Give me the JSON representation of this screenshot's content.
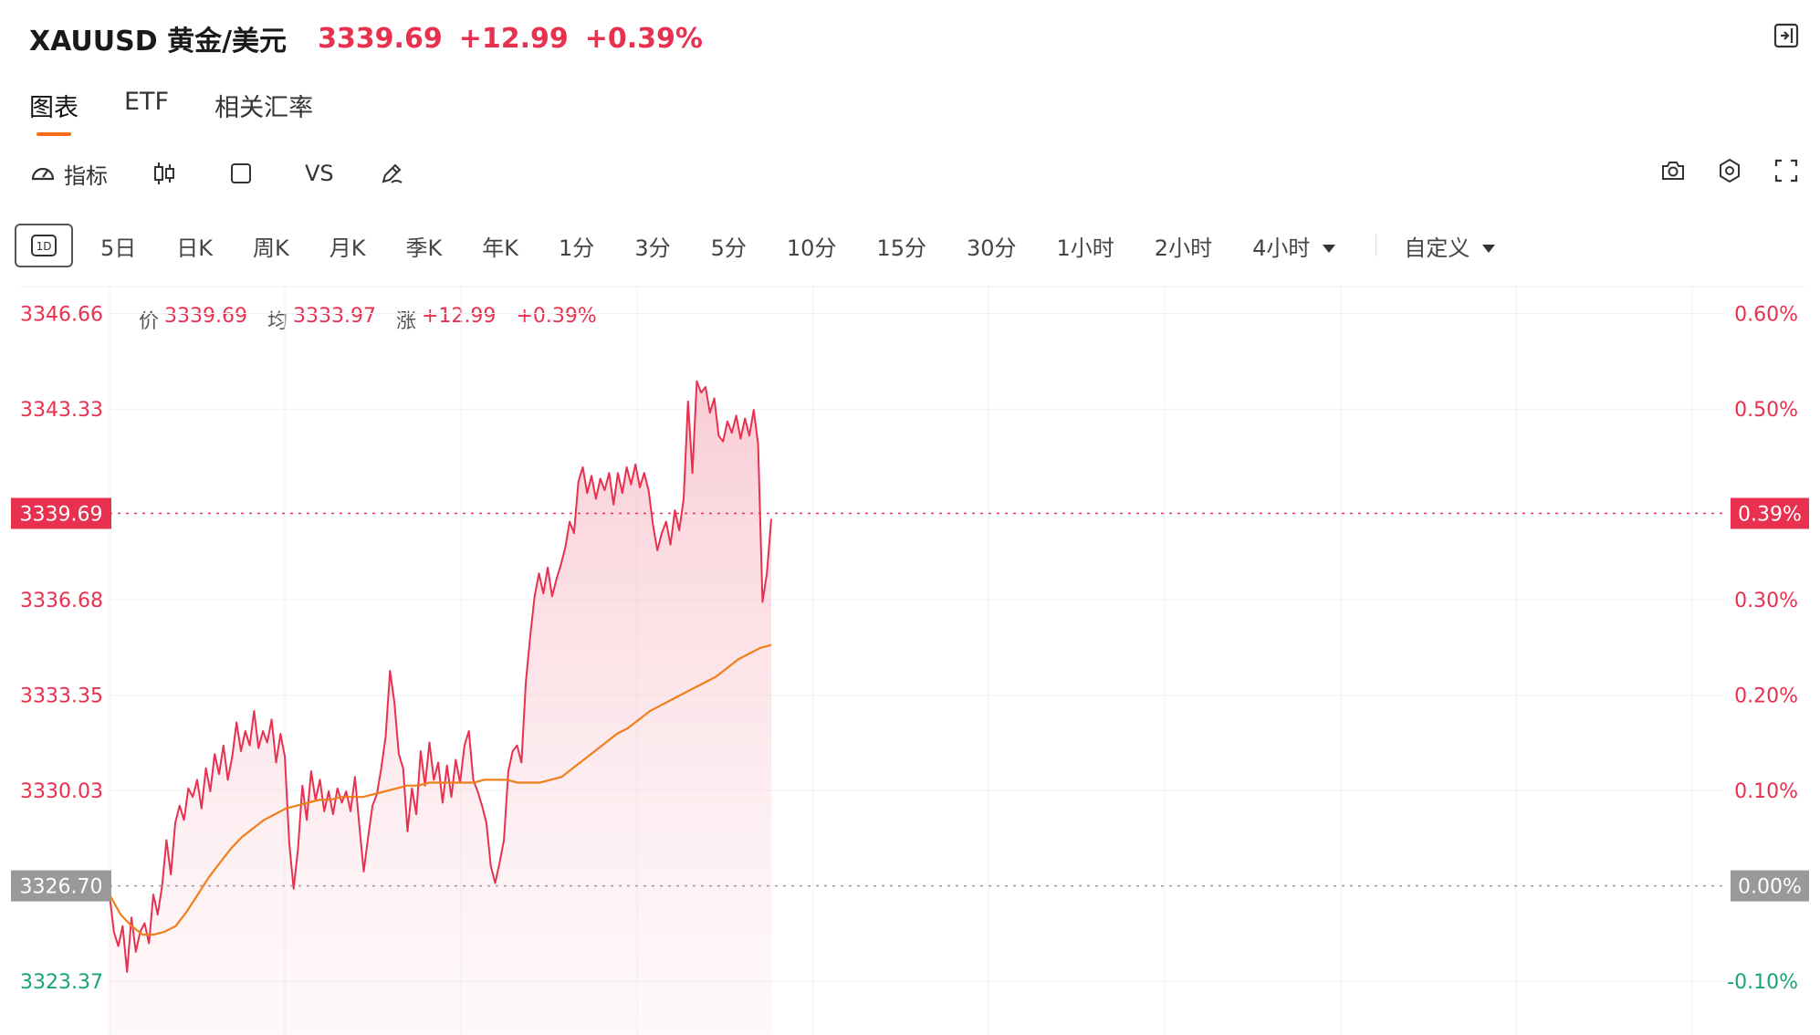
{
  "header": {
    "symbol": "XAUUSD 黄金/美元",
    "price": "3339.69",
    "change": "+12.99",
    "change_pct": "+0.39%"
  },
  "tabs": [
    {
      "label": "图表",
      "active": true
    },
    {
      "label": "ETF",
      "active": false
    },
    {
      "label": "相关汇率",
      "active": false
    }
  ],
  "toolbar": {
    "indicator_label": "指标",
    "vs_label": "VS"
  },
  "periods": [
    "1D",
    "5日",
    "日K",
    "周K",
    "月K",
    "季K",
    "年K",
    "1分",
    "3分",
    "5分",
    "10分",
    "15分",
    "30分",
    "1小时",
    "2小时",
    "4小时",
    "自定义"
  ],
  "info": {
    "price_label": "价",
    "price": "3339.69",
    "avg_label": "均",
    "avg": "3333.97",
    "chg_label": "涨",
    "chg": "+12.99",
    "chg_pct": "+0.39%"
  },
  "colors": {
    "up": "#e8304f",
    "down": "#1aa37a",
    "avg_line": "#f07f1a",
    "prev_close_tag": "#999999"
  },
  "chart_data": {
    "type": "line",
    "prev_close": 3326.7,
    "last_price": 3339.69,
    "ylim": [
      3321.5,
      3347.6
    ],
    "y_ticks_left": [
      "3346.66",
      "3343.33",
      "3336.68",
      "3333.35",
      "3330.03",
      "3323.37"
    ],
    "y_tick_values": [
      3346.66,
      3343.33,
      3336.68,
      3333.35,
      3330.03,
      3323.37
    ],
    "y_ticks_right": [
      "0.60%",
      "0.50%",
      "0.30%",
      "0.20%",
      "0.10%",
      "-0.10%"
    ],
    "last_price_label": "3339.69",
    "last_pct_label": "0.39%",
    "prev_close_label": "3326.70",
    "prev_pct_label": "0.00%",
    "series": [
      {
        "values": [
          3326.4,
          3325.1,
          3324.6,
          3325.3,
          3323.7,
          3325.6,
          3324.4,
          3325.1,
          3325.4,
          3324.7,
          3326.4,
          3325.7,
          3326.7,
          3328.3,
          3327.1,
          3328.9,
          3329.5,
          3329.0,
          3330.1,
          3329.8,
          3330.4,
          3329.4,
          3330.8,
          3330.0,
          3331.3,
          3330.6,
          3331.6,
          3330.4,
          3331.2,
          3332.4,
          3331.4,
          3332.1,
          3331.6,
          3332.8,
          3331.5,
          3332.1,
          3331.7,
          3332.5,
          3331.0,
          3332.0,
          3331.2,
          3328.2,
          3326.6,
          3328.0,
          3330.2,
          3329.0,
          3330.7,
          3329.7,
          3330.4,
          3329.3,
          3330.0,
          3329.2,
          3330.1,
          3329.6,
          3330.0,
          3329.3,
          3330.5,
          3328.8,
          3327.2,
          3328.4,
          3329.5,
          3329.9,
          3330.8,
          3331.9,
          3334.2,
          3333.1,
          3331.3,
          3330.8,
          3328.6,
          3330.1,
          3329.2,
          3331.4,
          3330.2,
          3331.7,
          3330.4,
          3331.0,
          3329.6,
          3330.9,
          3329.8,
          3331.1,
          3330.3,
          3331.6,
          3332.1,
          3330.4,
          3330.0,
          3329.5,
          3328.9,
          3327.4,
          3326.8,
          3327.5,
          3328.3,
          3330.7,
          3331.4,
          3331.6,
          3331.0,
          3333.8,
          3335.4,
          3336.8,
          3337.6,
          3336.9,
          3337.8,
          3336.8,
          3337.4,
          3337.9,
          3338.5,
          3339.4,
          3339.0,
          3340.8,
          3341.3,
          3340.4,
          3341.0,
          3340.2,
          3340.9,
          3340.5,
          3341.1,
          3340.0,
          3341.1,
          3340.4,
          3341.3,
          3340.7,
          3341.4,
          3340.6,
          3341.1,
          3340.5,
          3339.3,
          3338.4,
          3339.0,
          3339.4,
          3338.6,
          3339.8,
          3339.1,
          3340.2,
          3343.6,
          3341.1,
          3344.3,
          3343.9,
          3344.1,
          3343.2,
          3343.7,
          3342.4,
          3342.2,
          3342.9,
          3342.5,
          3343.1,
          3342.3,
          3343.0,
          3342.4,
          3343.3,
          3342.1,
          3336.6,
          3337.6,
          3339.5
        ]
      },
      {
        "values": [
          3326.4,
          3325.7,
          3325.3,
          3325.0,
          3325.0,
          3325.1,
          3325.3,
          3325.8,
          3326.4,
          3327.0,
          3327.5,
          3328.0,
          3328.4,
          3328.7,
          3329.0,
          3329.2,
          3329.4,
          3329.5,
          3329.6,
          3329.7,
          3329.7,
          3329.8,
          3329.8,
          3329.8,
          3329.9,
          3330.0,
          3330.1,
          3330.2,
          3330.2,
          3330.3,
          3330.3,
          3330.3,
          3330.3,
          3330.3,
          3330.4,
          3330.4,
          3330.4,
          3330.3,
          3330.3,
          3330.3,
          3330.4,
          3330.5,
          3330.8,
          3331.1,
          3331.4,
          3331.7,
          3332.0,
          3332.2,
          3332.5,
          3332.8,
          3333.0,
          3333.2,
          3333.4,
          3333.6,
          3333.8,
          3334.0,
          3334.3,
          3334.6,
          3334.8,
          3335.0,
          3335.1
        ]
      }
    ]
  }
}
